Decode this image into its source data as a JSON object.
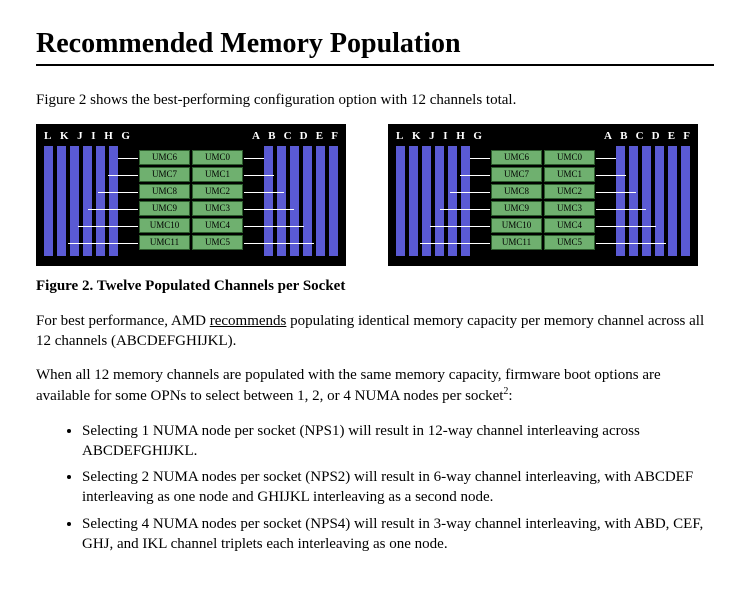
{
  "heading": "Recommended Memory Population",
  "intro": "Figure 2 shows the best-performing configuration option with 12 channels total.",
  "figureCaption": "Figure 2. Twelve Populated Channels per Socket",
  "para2a": "For best performance, AMD ",
  "para2u": "recommends",
  "para2b": " populating identical memory capacity per memory channel across all 12 channels (ABCDEFGHIJKL).",
  "para3a": "When all 12 memory channels are populated with the same memory capacity, firmware boot options are available for some OPNs to select between 1, 2, or 4 NUMA nodes per socket",
  "para3sup": "2",
  "para3b": ":",
  "bullets": [
    "Selecting 1 NUMA node per socket (NPS1) will result in 12-way channel interleaving across ABCDEFGHIJKL.",
    "Selecting 2 NUMA nodes per socket (NPS2) will result in 6-way channel interleaving, with ABCDEF interleaving as one node and GHIJKL interleaving as a second node.",
    "Selecting 4 NUMA nodes per socket (NPS4) will result in 3-way channel interleaving, with ABD, CEF, GHJ, and IKL channel triplets each interleaving as one node."
  ],
  "diagram": {
    "lettersLeft": [
      "L",
      "K",
      "J",
      "I",
      "H",
      "G"
    ],
    "lettersRight": [
      "A",
      "B",
      "C",
      "D",
      "E",
      "F"
    ],
    "barColor": "#5a5ad4",
    "barsPerSide": 6,
    "umcLeft": [
      "UMC6",
      "UMC7",
      "UMC8",
      "UMC9",
      "UMC10",
      "UMC11"
    ],
    "umcRight": [
      "UMC0",
      "UMC1",
      "UMC2",
      "UMC3",
      "UMC4",
      "UMC5"
    ],
    "cellBg": "#6fb06f"
  }
}
